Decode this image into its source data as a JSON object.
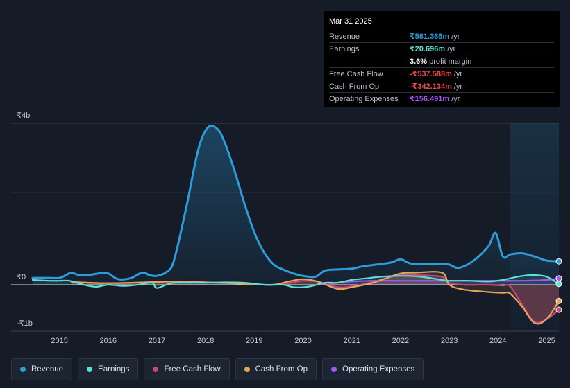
{
  "tooltip": {
    "date": "Mar 31 2025",
    "rows": [
      {
        "label": "Revenue",
        "value": "₹581.366m",
        "unit": "/yr",
        "color": "#2d9cdb"
      },
      {
        "label": "Earnings",
        "value": "₹20.696m",
        "unit": "/yr",
        "color": "#5ce0d2"
      },
      {
        "label": "",
        "value": "3.6%",
        "unit": "profit margin",
        "color": "#ffffff"
      },
      {
        "label": "Free Cash Flow",
        "value": "-₹537.588m",
        "unit": "/yr",
        "color": "#ee4a4a"
      },
      {
        "label": "Cash From Op",
        "value": "-₹342.134m",
        "unit": "/yr",
        "color": "#ee4a4a"
      },
      {
        "label": "Operating Expenses",
        "value": "₹156.491m",
        "unit": "/yr",
        "color": "#a855f7"
      }
    ]
  },
  "chart_data": {
    "type": "line",
    "title": "",
    "xlabel": "",
    "ylabel": "",
    "y_tick_labels": {
      "top": "₹4b",
      "zero": "₹0",
      "bottom": "-₹1b"
    },
    "ylim": [
      -1,
      4
    ],
    "xlim": [
      2014.45,
      2025.25
    ],
    "x_ticks": [
      "2015",
      "2016",
      "2017",
      "2018",
      "2019",
      "2020",
      "2021",
      "2022",
      "2023",
      "2024",
      "2025"
    ],
    "forecast_region_start": 2024.25,
    "series": [
      {
        "name": "Revenue",
        "color": "#2d9cdb",
        "x": [
          2014.45,
          2014.75,
          2015.0,
          2015.15,
          2015.25,
          2015.4,
          2015.6,
          2015.8,
          2016.0,
          2016.2,
          2016.45,
          2016.7,
          2016.85,
          2017.0,
          2017.2,
          2017.35,
          2017.6,
          2017.85,
          2018.05,
          2018.25,
          2018.4,
          2018.6,
          2018.8,
          2019.0,
          2019.2,
          2019.4,
          2019.55,
          2019.8,
          2020.0,
          2020.25,
          2020.45,
          2020.7,
          2021.0,
          2021.2,
          2021.5,
          2021.8,
          2022.0,
          2022.2,
          2022.5,
          2022.85,
          2023.0,
          2023.2,
          2023.5,
          2023.8,
          2023.95,
          2024.1,
          2024.25,
          2024.5,
          2024.8,
          2025.0,
          2025.25
        ],
        "values": [
          0.17,
          0.17,
          0.17,
          0.25,
          0.3,
          0.24,
          0.24,
          0.28,
          0.28,
          0.14,
          0.16,
          0.3,
          0.24,
          0.22,
          0.32,
          0.6,
          1.9,
          3.35,
          3.9,
          3.85,
          3.5,
          2.8,
          2.0,
          1.3,
          0.8,
          0.5,
          0.4,
          0.28,
          0.22,
          0.2,
          0.35,
          0.38,
          0.4,
          0.45,
          0.5,
          0.55,
          0.63,
          0.53,
          0.52,
          0.52,
          0.5,
          0.42,
          0.6,
          0.95,
          1.28,
          0.7,
          0.75,
          0.78,
          0.68,
          0.6,
          0.58
        ]
      },
      {
        "name": "Earnings",
        "color": "#5ce0d2",
        "x": [
          2014.45,
          2014.8,
          2015.0,
          2015.2,
          2015.5,
          2015.75,
          2016.0,
          2016.3,
          2016.6,
          2016.9,
          2017.0,
          2017.3,
          2017.7,
          2018.0,
          2018.4,
          2018.8,
          2019.2,
          2019.6,
          2019.8,
          2020.1,
          2020.45,
          2020.7,
          2021.0,
          2021.3,
          2021.6,
          2022.0,
          2022.4,
          2022.85,
          2023.0,
          2023.4,
          2023.8,
          2024.1,
          2024.4,
          2024.7,
          2025.0,
          2025.25
        ],
        "values": [
          0.12,
          0.1,
          0.1,
          0.1,
          0.0,
          -0.05,
          0.0,
          -0.03,
          0.0,
          0.05,
          -0.08,
          0.04,
          0.05,
          0.05,
          0.06,
          0.05,
          0.0,
          0.0,
          -0.06,
          -0.05,
          0.05,
          0.05,
          0.12,
          0.16,
          0.2,
          0.22,
          0.2,
          0.12,
          0.1,
          0.1,
          0.08,
          0.12,
          0.2,
          0.24,
          0.2,
          0.02
        ]
      },
      {
        "name": "Free Cash Flow",
        "color": "#c9467a",
        "x": [
          2015.25,
          2015.6,
          2016.0,
          2016.5,
          2017.0,
          2017.5,
          2018.0,
          2018.5,
          2019.0,
          2019.4,
          2019.7,
          2020.0,
          2020.3,
          2020.7,
          2021.0,
          2021.4,
          2021.7,
          2022.0,
          2022.3,
          2022.85,
          2023.0,
          2023.3,
          2023.8,
          2024.1,
          2024.25,
          2024.5,
          2024.75,
          2025.0,
          2025.25
        ],
        "values": [
          0.07,
          0.05,
          0.04,
          0.05,
          0.07,
          0.08,
          0.06,
          0.04,
          0.01,
          0.0,
          0.04,
          0.1,
          0.08,
          -0.06,
          -0.04,
          0.06,
          0.16,
          0.25,
          0.24,
          0.2,
          0.05,
          0.0,
          0.0,
          -0.02,
          -0.04,
          -0.5,
          -0.92,
          -0.85,
          -0.62
        ]
      },
      {
        "name": "Cash From Op",
        "color": "#e9a35a",
        "x": [
          2015.25,
          2015.6,
          2016.0,
          2016.5,
          2017.0,
          2017.5,
          2018.0,
          2018.5,
          2019.0,
          2019.4,
          2019.7,
          2020.0,
          2020.3,
          2020.7,
          2021.0,
          2021.4,
          2021.7,
          2022.0,
          2022.3,
          2022.85,
          2023.0,
          2023.3,
          2023.8,
          2024.1,
          2024.25,
          2024.5,
          2024.75,
          2025.0,
          2025.25
        ],
        "values": [
          0.07,
          0.05,
          0.04,
          0.05,
          0.07,
          0.08,
          0.06,
          0.04,
          0.01,
          0.0,
          0.08,
          0.14,
          0.08,
          -0.1,
          -0.06,
          0.04,
          0.16,
          0.28,
          0.3,
          0.3,
          0.0,
          -0.12,
          -0.18,
          -0.2,
          -0.22,
          -0.55,
          -0.95,
          -0.85,
          -0.4
        ]
      },
      {
        "name": "Operating Expenses",
        "color": "#a855f7",
        "x": [
          2020.3,
          2020.7,
          2021.0,
          2021.5,
          2022.0,
          2022.5,
          2023.0,
          2023.5,
          2024.0,
          2024.5,
          2025.0,
          2025.25
        ],
        "values": [
          0.0,
          0.05,
          0.08,
          0.1,
          0.1,
          0.1,
          0.1,
          0.1,
          0.1,
          0.1,
          0.12,
          0.16
        ]
      }
    ]
  },
  "legend": [
    {
      "label": "Revenue",
      "color": "#2d9cdb"
    },
    {
      "label": "Earnings",
      "color": "#5ce0d2"
    },
    {
      "label": "Free Cash Flow",
      "color": "#c9467a"
    },
    {
      "label": "Cash From Op",
      "color": "#e9a35a"
    },
    {
      "label": "Operating Expenses",
      "color": "#a855f7"
    }
  ]
}
